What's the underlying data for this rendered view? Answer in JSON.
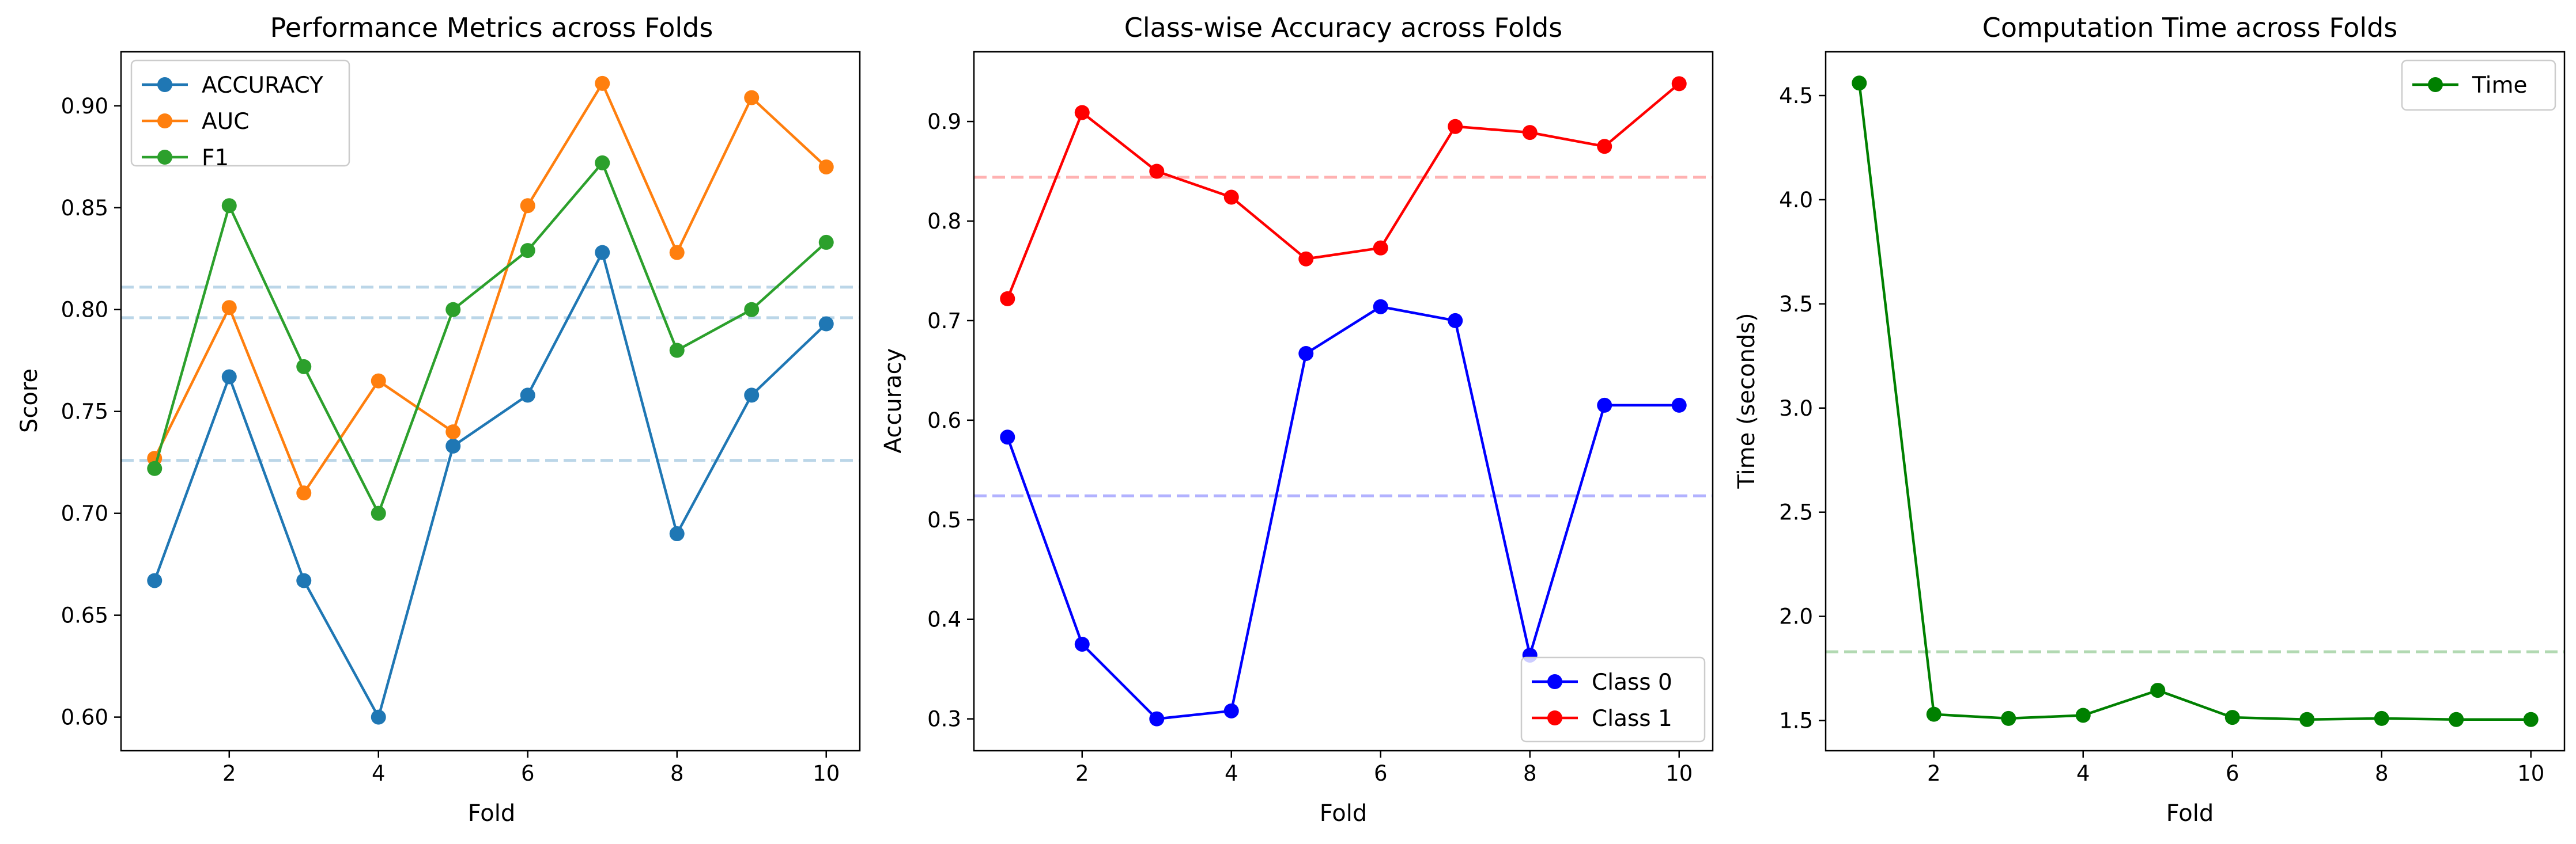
{
  "chart_data": [
    {
      "type": "line",
      "title": "Performance Metrics across Folds",
      "xlabel": "Fold",
      "ylabel": "Score",
      "xlim": [
        0.55,
        10.45
      ],
      "ylim": [
        0.5835,
        0.9265
      ],
      "xticks": [
        2,
        4,
        6,
        8,
        10
      ],
      "yticks": [
        0.6,
        0.65,
        0.7,
        0.75,
        0.8,
        0.85,
        0.9
      ],
      "ytick_labels": [
        "0.60",
        "0.65",
        "0.70",
        "0.75",
        "0.80",
        "0.85",
        "0.90"
      ],
      "grid": false,
      "legend_position": "upper-left",
      "x": [
        1,
        2,
        3,
        4,
        5,
        6,
        7,
        8,
        9,
        10
      ],
      "series": [
        {
          "name": "ACCURACY",
          "color": "#1f77b4",
          "values": [
            0.667,
            0.767,
            0.667,
            0.6,
            0.733,
            0.758,
            0.828,
            0.69,
            0.758,
            0.793
          ]
        },
        {
          "name": "AUC",
          "color": "#ff7f0e",
          "values": [
            0.727,
            0.801,
            0.71,
            0.765,
            0.74,
            0.851,
            0.911,
            0.828,
            0.904,
            0.87
          ]
        },
        {
          "name": "F1",
          "color": "#2ca02c",
          "values": [
            0.722,
            0.851,
            0.772,
            0.7,
            0.8,
            0.829,
            0.872,
            0.78,
            0.8,
            0.833
          ]
        }
      ],
      "reference_lines": [
        {
          "value": 0.726,
          "color": "#1f77b4"
        },
        {
          "value": 0.796,
          "color": "#1f77b4"
        },
        {
          "value": 0.811,
          "color": "#1f77b4"
        }
      ]
    },
    {
      "type": "line",
      "title": "Class-wise Accuracy across Folds",
      "xlabel": "Fold",
      "ylabel": "Accuracy",
      "xlim": [
        0.55,
        10.45
      ],
      "ylim": [
        0.268,
        0.97
      ],
      "xticks": [
        2,
        4,
        6,
        8,
        10
      ],
      "yticks": [
        0.3,
        0.4,
        0.5,
        0.6,
        0.7,
        0.8,
        0.9
      ],
      "ytick_labels": [
        "0.3",
        "0.4",
        "0.5",
        "0.6",
        "0.7",
        "0.8",
        "0.9"
      ],
      "grid": false,
      "legend_position": "lower-right",
      "x": [
        1,
        2,
        3,
        4,
        5,
        6,
        7,
        8,
        9,
        10
      ],
      "series": [
        {
          "name": "Class 0",
          "color": "#0000ff",
          "values": [
            0.583,
            0.375,
            0.3,
            0.308,
            0.667,
            0.714,
            0.7,
            0.364,
            0.615,
            0.615
          ]
        },
        {
          "name": "Class 1",
          "color": "#ff0000",
          "values": [
            0.722,
            0.909,
            0.85,
            0.824,
            0.762,
            0.773,
            0.895,
            0.889,
            0.875,
            0.938
          ]
        }
      ],
      "reference_lines": [
        {
          "value": 0.524,
          "color": "#0000ff"
        },
        {
          "value": 0.844,
          "color": "#ff0000"
        }
      ]
    },
    {
      "type": "line",
      "title": "Computation Time across Folds",
      "xlabel": "Fold",
      "ylabel": "Time (seconds)",
      "xlim": [
        0.55,
        10.45
      ],
      "ylim": [
        1.355,
        4.71
      ],
      "xticks": [
        2,
        4,
        6,
        8,
        10
      ],
      "yticks": [
        1.5,
        2.0,
        2.5,
        3.0,
        3.5,
        4.0,
        4.5
      ],
      "ytick_labels": [
        "1.5",
        "2.0",
        "2.5",
        "3.0",
        "3.5",
        "4.0",
        "4.5"
      ],
      "grid": false,
      "legend_position": "upper-right",
      "x": [
        1,
        2,
        3,
        4,
        5,
        6,
        7,
        8,
        9,
        10
      ],
      "series": [
        {
          "name": "Time",
          "color": "#008000",
          "values": [
            4.56,
            1.53,
            1.51,
            1.525,
            1.645,
            1.515,
            1.505,
            1.51,
            1.505,
            1.505
          ]
        }
      ],
      "reference_lines": [
        {
          "value": 1.83,
          "color": "#008000"
        }
      ]
    }
  ]
}
